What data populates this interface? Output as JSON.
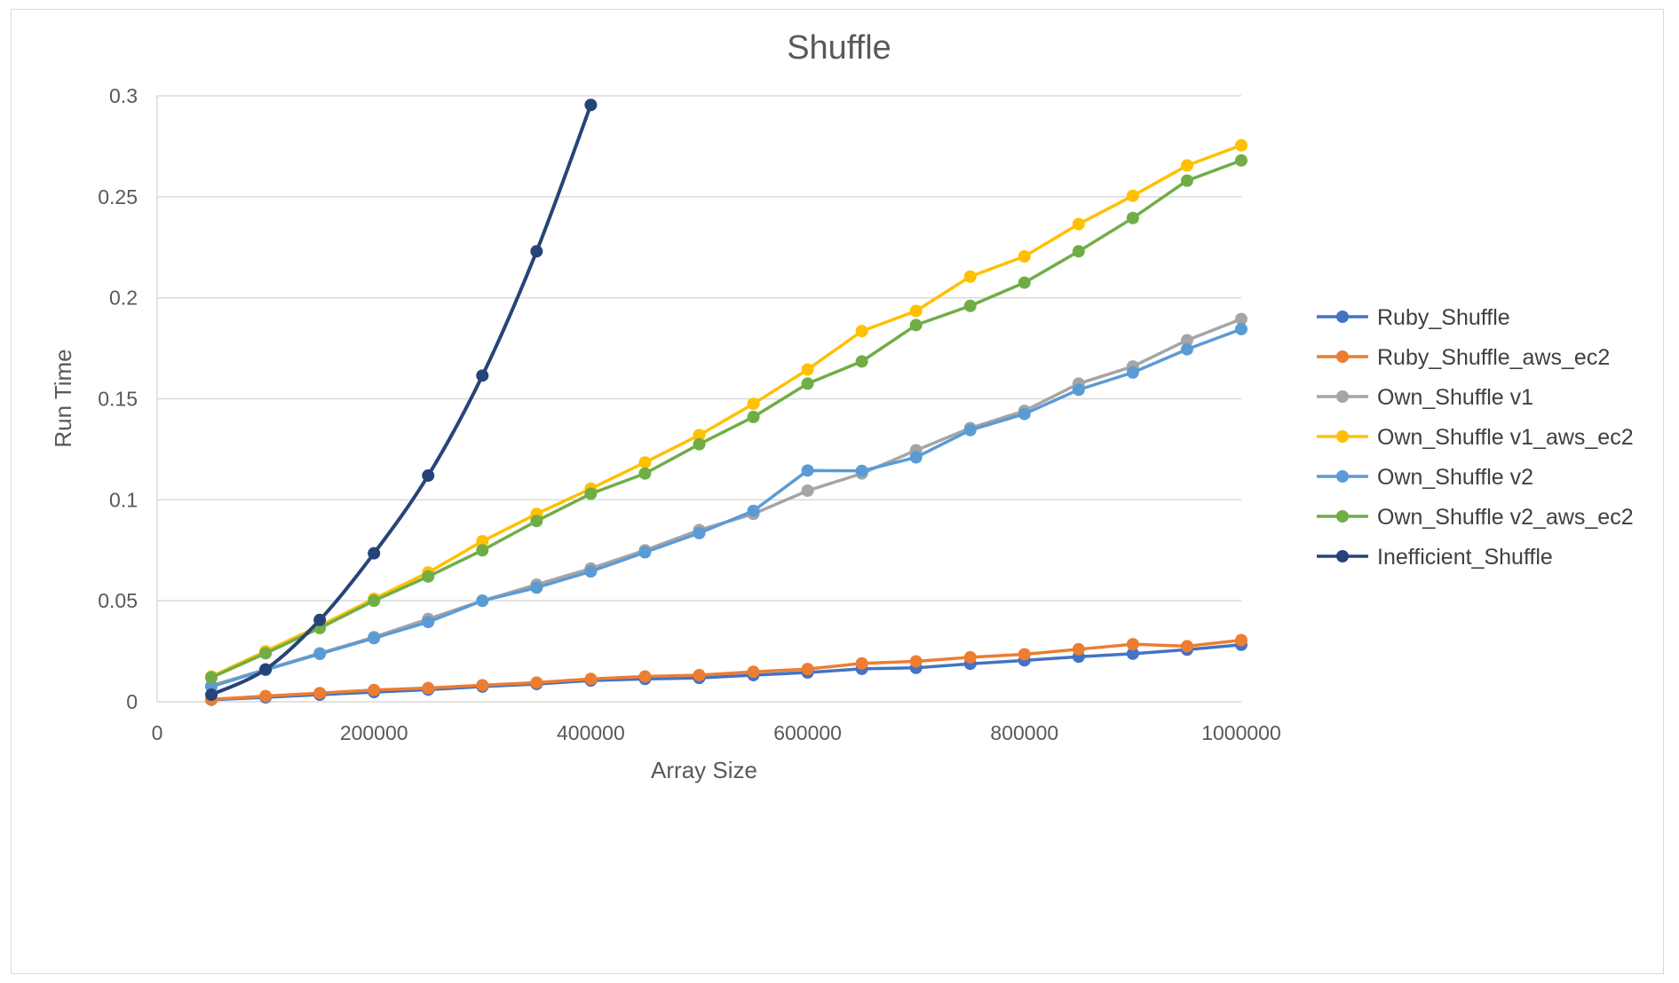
{
  "chart_data": {
    "type": "line",
    "title": "Shuffle",
    "xlabel": "Array Size",
    "ylabel": "Run Time",
    "xlim": [
      0,
      1000000
    ],
    "ylim": [
      0,
      0.3
    ],
    "xticks": [
      "0",
      "200000",
      "400000",
      "600000",
      "800000",
      "1000000"
    ],
    "yticks": [
      "0",
      "0.05",
      "0.1",
      "0.15",
      "0.2",
      "0.25",
      "0.3"
    ],
    "grid": true,
    "legend_position": "right",
    "x": [
      50000,
      100000,
      150000,
      200000,
      250000,
      300000,
      350000,
      400000,
      450000,
      500000,
      550000,
      600000,
      650000,
      700000,
      750000,
      800000,
      850000,
      900000,
      950000,
      1000000
    ],
    "series": [
      {
        "name": "Ruby_Shuffle",
        "color": "#4472C4",
        "values": [
          0.001,
          0.0022,
          0.0035,
          0.0048,
          0.006,
          0.0075,
          0.0088,
          0.0105,
          0.0113,
          0.0118,
          0.0132,
          0.0145,
          0.0163,
          0.0168,
          0.0188,
          0.0205,
          0.0223,
          0.0238,
          0.0258,
          0.0282
        ]
      },
      {
        "name": "Ruby_Shuffle_aws_ec2",
        "color": "#ED7D31",
        "values": [
          0.0012,
          0.0028,
          0.0043,
          0.0058,
          0.0068,
          0.0082,
          0.0095,
          0.0113,
          0.0125,
          0.0132,
          0.0148,
          0.0162,
          0.019,
          0.02,
          0.022,
          0.0235,
          0.026,
          0.0285,
          0.0275,
          0.0305
        ]
      },
      {
        "name": "Own_Shuffle v1",
        "color": "#A5A5A5",
        "values": [
          0.008,
          0.016,
          0.024,
          0.032,
          0.041,
          0.05,
          0.058,
          0.066,
          0.075,
          0.085,
          0.093,
          0.1045,
          0.113,
          0.1245,
          0.1355,
          0.144,
          0.1575,
          0.166,
          0.179,
          0.1895
        ]
      },
      {
        "name": "Own_Shuffle v1_aws_ec2",
        "color": "#FFC000",
        "values": [
          0.0125,
          0.025,
          0.0375,
          0.051,
          0.064,
          0.0795,
          0.093,
          0.1055,
          0.1185,
          0.132,
          0.1475,
          0.1645,
          0.1835,
          0.1935,
          0.2105,
          0.2205,
          0.2365,
          0.2505,
          0.2655,
          0.2755
        ]
      },
      {
        "name": "Own_Shuffle v2",
        "color": "#5B9BD5",
        "values": [
          0.0075,
          0.0158,
          0.0237,
          0.0315,
          0.0395,
          0.05,
          0.0565,
          0.0645,
          0.074,
          0.0835,
          0.0945,
          0.1145,
          0.1143,
          0.121,
          0.1345,
          0.1425,
          0.1545,
          0.163,
          0.1745,
          0.1845
        ]
      },
      {
        "name": "Own_Shuffle v2_aws_ec2",
        "color": "#70AD47",
        "values": [
          0.012,
          0.024,
          0.0365,
          0.05,
          0.062,
          0.075,
          0.0895,
          0.103,
          0.113,
          0.1275,
          0.141,
          0.1575,
          0.1685,
          0.1865,
          0.196,
          0.2075,
          0.223,
          0.2395,
          0.258,
          0.268
        ]
      },
      {
        "name": "Inefficient_Shuffle",
        "color": "#264478",
        "smooth": true,
        "values": [
          0.0035,
          0.016,
          0.0405,
          0.0735,
          0.112,
          0.1615,
          0.223,
          0.2955,
          null,
          null,
          null,
          null,
          null,
          null,
          null,
          null,
          null,
          null,
          null,
          null
        ]
      }
    ]
  }
}
